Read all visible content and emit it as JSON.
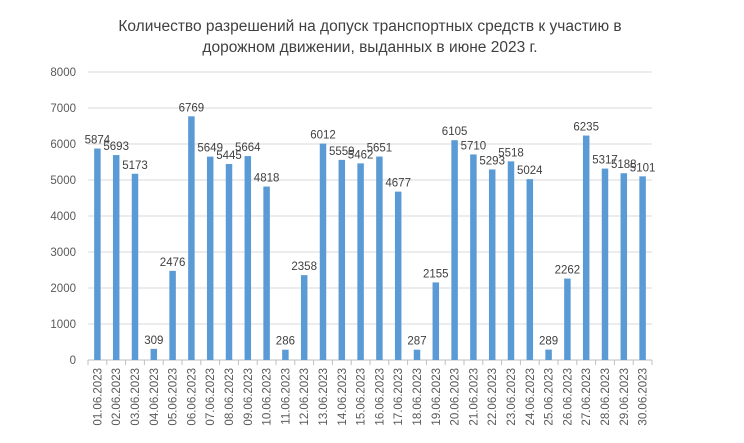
{
  "chart_data": {
    "type": "bar",
    "title": "Количество разрешений на допуск транспортных средств к участию в дорожном движении, выданных в июне 2023 г.",
    "title_lines": [
      "Количество разрешений на допуск транспортных средств к участию в",
      "дорожном движении, выданных в июне 2023 г."
    ],
    "xlabel": "",
    "ylabel": "",
    "ylim": [
      0,
      8000
    ],
    "yticks": [
      0,
      1000,
      2000,
      3000,
      4000,
      5000,
      6000,
      7000,
      8000
    ],
    "grid": true,
    "legend": null,
    "bar_color": "#5b9bd5",
    "categories": [
      "01.06.2023",
      "02.06.2023",
      "03.06.2023",
      "04.06.2023",
      "05.06.2023",
      "06.06.2023",
      "07.06.2023",
      "08.06.2023",
      "09.06.2023",
      "10.06.2023",
      "11.06.2023",
      "12.06.2023",
      "13.06.2023",
      "14.06.2023",
      "15.06.2023",
      "16.06.2023",
      "17.06.2023",
      "18.06.2023",
      "19.06.2023",
      "20.06.2023",
      "21.06.2023",
      "22.06.2023",
      "23.06.2023",
      "24.06.2023",
      "25.06.2023",
      "26.06.2023",
      "27.06.2023",
      "28.06.2023",
      "29.06.2023",
      "30.06.2023"
    ],
    "values": [
      5874,
      5693,
      5173,
      309,
      2476,
      6769,
      5649,
      5445,
      5664,
      4818,
      286,
      2358,
      6012,
      5559,
      5462,
      5651,
      4677,
      287,
      2155,
      6105,
      5710,
      5293,
      5518,
      5024,
      289,
      2262,
      6235,
      5317,
      5188,
      5101
    ]
  }
}
